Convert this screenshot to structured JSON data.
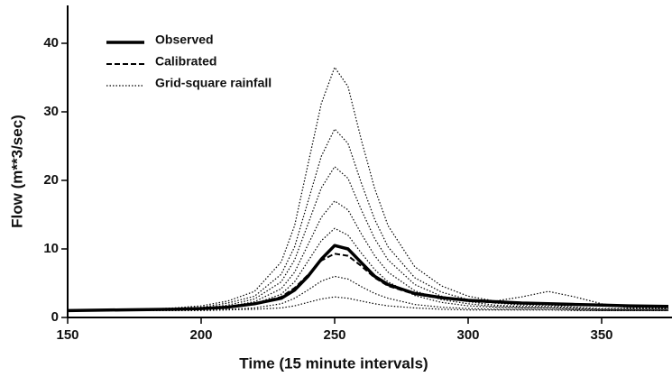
{
  "chart_data": {
    "type": "line",
    "xlabel": "Time (15 minute intervals)",
    "ylabel": "Flow (m**3/sec)",
    "x": [
      150,
      170,
      190,
      200,
      210,
      220,
      230,
      235,
      240,
      245,
      250,
      255,
      260,
      265,
      270,
      280,
      290,
      300,
      310,
      320,
      330,
      340,
      350,
      360,
      375
    ],
    "xlim": [
      150,
      375
    ],
    "xticks": [
      150,
      200,
      250,
      300,
      350
    ],
    "ylim": [
      0,
      45
    ],
    "yticks": [
      0,
      10,
      20,
      30,
      40
    ],
    "legend": "upper left",
    "series": [
      {
        "name": "Observed",
        "color": "#000000",
        "style": "solid",
        "values": [
          1,
          1.1,
          1.2,
          1.3,
          1.5,
          2,
          2.8,
          4,
          6,
          8.5,
          10.5,
          10,
          8,
          6,
          4.8,
          3.5,
          2.9,
          2.5,
          2.3,
          2.1,
          2,
          1.9,
          1.8,
          1.7,
          1.6
        ]
      },
      {
        "name": "Calibrated",
        "color": "#000000",
        "style": "dashed",
        "values": [
          1,
          1.1,
          1.2,
          1.3,
          1.5,
          2,
          3,
          4.3,
          6.2,
          8.3,
          9.3,
          9,
          7.5,
          5.8,
          4.6,
          3.4,
          2.8,
          2.4,
          2.2,
          2.1,
          2,
          1.9,
          1.8,
          1.7,
          1.6
        ]
      },
      {
        "name": "Grid-square rainfall",
        "color": "#000000",
        "style": "dotted",
        "values": [
          [
            1,
            1,
            1.4,
            1.7,
            2.4,
            3.8,
            8.1,
            13.4,
            22.3,
            31.2,
            36.5,
            33.7,
            25.9,
            18.8,
            13.4,
            7.4,
            4.6,
            3.1,
            2.4,
            3,
            3.8,
            3,
            2,
            1.4,
            1.4
          ],
          [
            1,
            1,
            1.3,
            1.5,
            2.1,
            3.1,
            6.3,
            10.3,
            16.9,
            23.5,
            27.5,
            25.4,
            19.6,
            14.3,
            10.3,
            5.8,
            3.7,
            2.6,
            2.1,
            1.8,
            1.8,
            1.5,
            1.3,
            1.3,
            1.3
          ],
          [
            1,
            1,
            1.2,
            1.4,
            1.8,
            2.7,
            5.2,
            8.4,
            13.6,
            18.9,
            22,
            20.3,
            15.7,
            11.5,
            8.4,
            4.8,
            3.1,
            2.3,
            1.8,
            1.6,
            1.6,
            1.4,
            1.2,
            1.2,
            1.2
          ],
          [
            1,
            1,
            1.2,
            1.3,
            1.6,
            2.3,
            4.2,
            6.6,
            10.6,
            14.6,
            17,
            15.7,
            12.2,
            9,
            6.6,
            3.9,
            2.6,
            2,
            1.6,
            1.5,
            1.5,
            1.3,
            1.2,
            1.2,
            1.2
          ],
          [
            1,
            1,
            1.1,
            1.2,
            1.5,
            2,
            3.4,
            5.2,
            8.2,
            11.2,
            13,
            12,
            9.4,
            7,
            5.2,
            3.2,
            2.2,
            1.7,
            1.5,
            1.4,
            1.4,
            1.2,
            1.1,
            1.1,
            1.1
          ],
          [
            1,
            1,
            1,
            1.1,
            1.2,
            1.4,
            2,
            2.8,
            4,
            5.3,
            6,
            5.6,
            4.5,
            3.5,
            2.8,
            1.9,
            1.5,
            1.3,
            1.2,
            1.2,
            1.2,
            1.1,
            1,
            1,
            1
          ],
          [
            1,
            1,
            1,
            1,
            1.1,
            1.2,
            1.4,
            1.7,
            2.2,
            2.7,
            3,
            2.8,
            2.4,
            2,
            1.7,
            1.4,
            1.2,
            1.1,
            1.1,
            1.1,
            1.1,
            1,
            1,
            1,
            1
          ]
        ]
      }
    ]
  }
}
